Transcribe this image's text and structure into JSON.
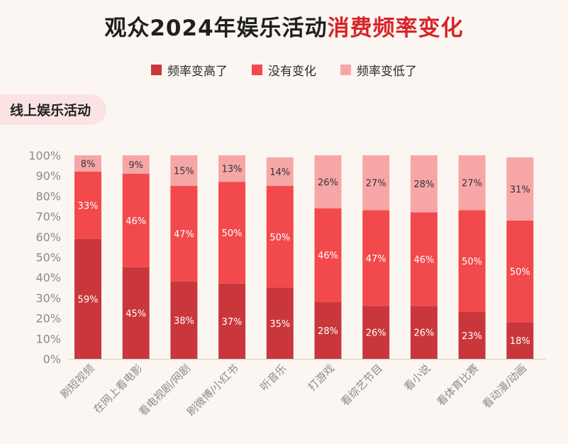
{
  "title": {
    "main": "观众2024年娱乐活动",
    "highlight": "消费频率变化"
  },
  "section_label": "线上娱乐活动",
  "colors": {
    "higher": "#c9373b",
    "same": "#f2494d",
    "lower": "#f7a6a8",
    "title_highlight": "#d7242a"
  },
  "chart_data": {
    "type": "bar",
    "stacked": true,
    "categories": [
      "刷短视频",
      "在网上看电影",
      "看电视剧/网剧",
      "刷微博/小红书",
      "听音乐",
      "打游戏",
      "看综艺节目",
      "看小说",
      "看体育比赛",
      "看动漫/动画"
    ],
    "series": [
      {
        "name": "频率变高了",
        "values": [
          59,
          45,
          38,
          37,
          35,
          28,
          26,
          26,
          23,
          18
        ]
      },
      {
        "name": "没有变化",
        "values": [
          33,
          46,
          47,
          50,
          50,
          46,
          47,
          46,
          50,
          50
        ]
      },
      {
        "name": "频率变低了",
        "values": [
          8,
          9,
          15,
          13,
          14,
          26,
          27,
          28,
          27,
          31
        ]
      }
    ],
    "ylim": [
      0,
      100
    ],
    "yticks": [
      "0%",
      "10%",
      "20%",
      "30%",
      "40%",
      "50%",
      "60%",
      "70%",
      "80%",
      "90%",
      "100%"
    ],
    "value_suffix": "%",
    "legend_position": "top"
  }
}
